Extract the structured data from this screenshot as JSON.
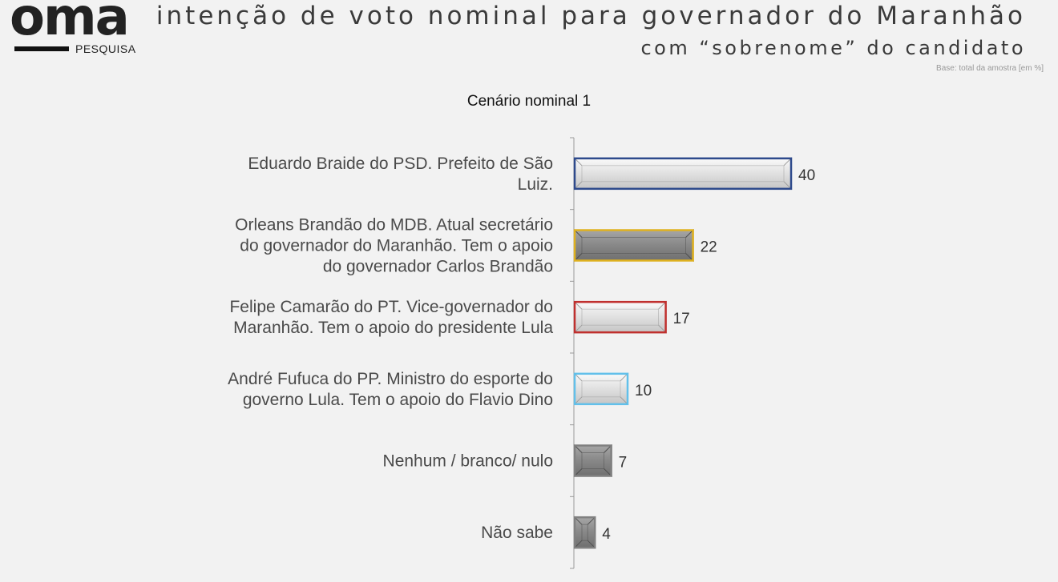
{
  "header": {
    "logo_word": "oma",
    "logo_sub": "PESQUISA",
    "title_line1": "intenção de voto nominal para governador do Maranhão",
    "title_line2": "com “sobrenome” do candidato",
    "base_note": "Base: total da amostra  [em %]"
  },
  "colors": {
    "braide": "#2e4a8c",
    "orleans": "#e0b21f",
    "camarao": "#c0302e",
    "fufuca": "#62c0ea",
    "neutral": "#808080"
  },
  "chart_data": {
    "type": "bar",
    "orientation": "horizontal",
    "title": "Cenário nominal 1",
    "xlabel": "",
    "ylabel": "",
    "xlim": [
      0,
      50
    ],
    "grid": false,
    "categories": [
      [
        "Eduardo Braide do PSD. Prefeito de São",
        "Luiz."
      ],
      [
        "Orleans Brandão do MDB.  Atual secretário",
        "do governador do Maranhão. Tem o apoio",
        "do governador Carlos Brandão"
      ],
      [
        "Felipe Camarão do PT. Vice-governador do",
        "Maranhão. Tem o apoio do presidente Lula"
      ],
      [
        "André Fufuca do PP. Ministro do esporte do",
        "governo Lula. Tem o apoio do Flavio Dino"
      ],
      [
        "Nenhum / branco/ nulo"
      ],
      [
        "Não sabe"
      ]
    ],
    "values": [
      40,
      22,
      17,
      10,
      7,
      4
    ],
    "data_labels": [
      "40",
      "22",
      "17",
      "10",
      "7",
      "4"
    ],
    "bar_styles": [
      {
        "fill": "light",
        "border": "braide"
      },
      {
        "fill": "dark",
        "border": "orleans"
      },
      {
        "fill": "light",
        "border": "camarao"
      },
      {
        "fill": "light",
        "border": "fufuca"
      },
      {
        "fill": "dark",
        "border": "neutral"
      },
      {
        "fill": "dark",
        "border": "neutral"
      }
    ]
  }
}
